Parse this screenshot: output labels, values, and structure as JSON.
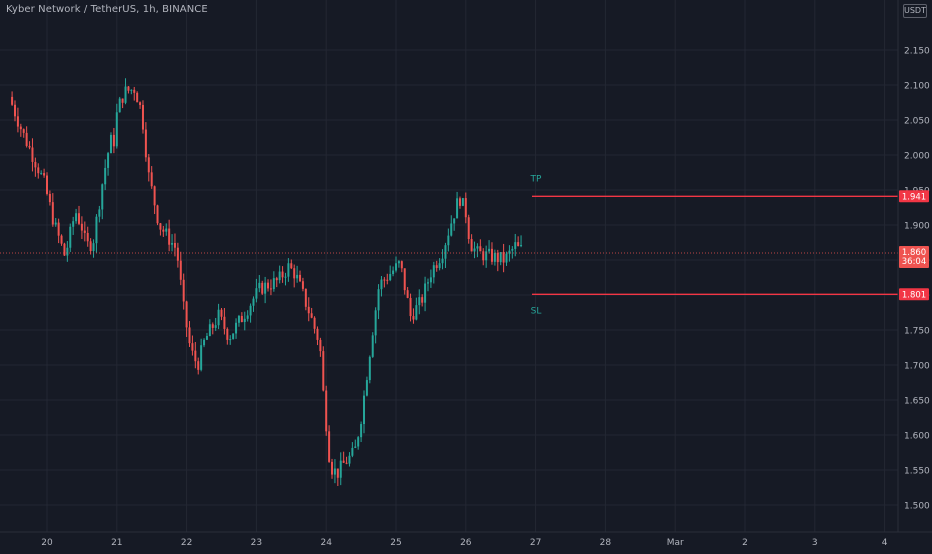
{
  "header": {
    "title": "Kyber Network / TetherUS, 1h, BINANCE",
    "currency": "USDT"
  },
  "colors": {
    "background": "#161a25",
    "grid": "#232733",
    "up": "#26a69a",
    "down": "#ef5350",
    "level_line": "#f23645",
    "axis_text": "#b2b5be",
    "annotation": "#26a69a"
  },
  "chart_data": {
    "type": "candlestick",
    "title": "",
    "xlabel": "",
    "ylabel": "",
    "x_ticks": [
      "20",
      "21",
      "22",
      "23",
      "24",
      "25",
      "26",
      "27",
      "28",
      "Mar",
      "2",
      "3",
      "4"
    ],
    "y_ticks": [
      "2.150",
      "2.100",
      "2.050",
      "2.000",
      "1.950",
      "1.900",
      "1.850",
      "1.800",
      "1.750",
      "1.700",
      "1.650",
      "1.600",
      "1.550",
      "1.500"
    ],
    "ylim": [
      1.49,
      2.2
    ],
    "grid": true,
    "current_price": {
      "label": "1.860",
      "countdown": "36:04",
      "value": 1.86
    },
    "levels": [
      {
        "name": "TP",
        "label": "TP",
        "price_label": "1.941",
        "value": 1.941
      },
      {
        "name": "SL",
        "label": "SL",
        "price_label": "1.801",
        "value": 1.801
      }
    ],
    "price_path": [
      [
        19.5,
        2.083
      ],
      [
        19.7,
        2.03
      ],
      [
        19.9,
        1.985
      ],
      [
        20.0,
        1.96
      ],
      [
        20.15,
        1.9
      ],
      [
        20.3,
        1.855
      ],
      [
        20.45,
        1.92
      ],
      [
        20.55,
        1.895
      ],
      [
        20.6,
        1.87
      ],
      [
        20.7,
        1.875
      ],
      [
        20.85,
        1.97
      ],
      [
        20.95,
        2.02
      ],
      [
        21.0,
        2.02
      ],
      [
        21.05,
        2.065
      ],
      [
        21.15,
        2.09
      ],
      [
        21.3,
        2.095
      ],
      [
        21.4,
        2.06
      ],
      [
        21.5,
        1.97
      ],
      [
        21.65,
        1.9
      ],
      [
        21.9,
        1.865
      ],
      [
        22.0,
        1.78
      ],
      [
        22.1,
        1.72
      ],
      [
        22.2,
        1.7
      ],
      [
        22.3,
        1.735
      ],
      [
        22.5,
        1.77
      ],
      [
        22.65,
        1.74
      ],
      [
        22.85,
        1.77
      ],
      [
        23.0,
        1.795
      ],
      [
        23.1,
        1.81
      ],
      [
        23.35,
        1.82
      ],
      [
        23.5,
        1.84
      ],
      [
        23.6,
        1.83
      ],
      [
        23.8,
        1.775
      ],
      [
        23.95,
        1.73
      ],
      [
        24.0,
        1.66
      ],
      [
        24.1,
        1.555
      ],
      [
        24.2,
        1.545
      ],
      [
        24.3,
        1.56
      ],
      [
        24.45,
        1.575
      ],
      [
        24.55,
        1.63
      ],
      [
        24.7,
        1.745
      ],
      [
        24.8,
        1.815
      ],
      [
        24.95,
        1.83
      ],
      [
        25.1,
        1.845
      ],
      [
        25.25,
        1.77
      ],
      [
        25.4,
        1.79
      ],
      [
        25.55,
        1.835
      ],
      [
        25.7,
        1.86
      ],
      [
        25.85,
        1.91
      ],
      [
        25.95,
        1.94
      ],
      [
        26.05,
        1.915
      ],
      [
        26.1,
        1.875
      ],
      [
        26.2,
        1.86
      ],
      [
        26.4,
        1.855
      ],
      [
        26.6,
        1.85
      ],
      [
        26.75,
        1.87
      ],
      [
        26.8,
        1.865
      ]
    ]
  }
}
